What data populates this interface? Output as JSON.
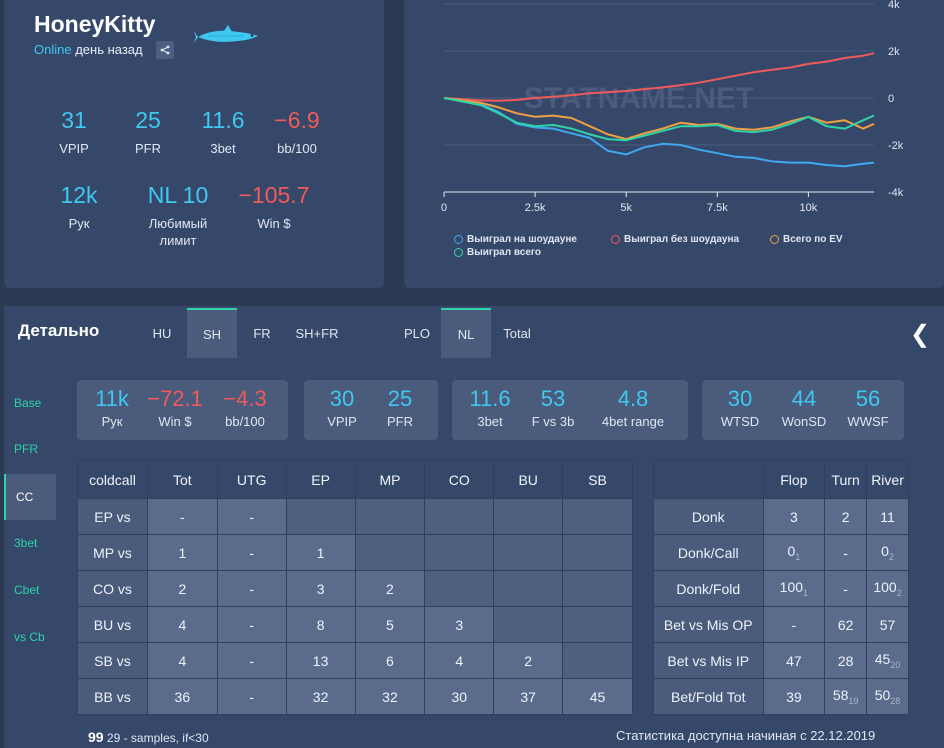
{
  "profile": {
    "name": "HoneyKitty",
    "status_online": "Online",
    "status_time": "день назад",
    "stats": [
      {
        "value": "31",
        "label": "VPIP",
        "color": "#3fc8f0"
      },
      {
        "value": "25",
        "label": "PFR",
        "color": "#3fc8f0"
      },
      {
        "value": "11.6",
        "label": "3bet",
        "color": "#3fc8f0"
      },
      {
        "value": "−6.9",
        "label": "bb/100",
        "color": "#f05a5a"
      },
      {
        "value": "12k",
        "label": "Рук",
        "color": "#3fc8f0"
      },
      {
        "value": "NL 10",
        "label": "Любимый лимит",
        "color": "#3fc8f0"
      },
      {
        "value": "−105.7",
        "label": "Win $",
        "color": "#f05a5a"
      }
    ]
  },
  "chart_data": {
    "type": "line",
    "watermark": "STATNAME.NET",
    "x_ticks": [
      "0",
      "2.5k",
      "5k",
      "7.5k",
      "10k"
    ],
    "y_ticks": [
      "4k",
      "2k",
      "0",
      "-2k",
      "-4k"
    ],
    "xlim": [
      0,
      11800
    ],
    "ylim": [
      -4000,
      4000
    ],
    "series": [
      {
        "name": "Выиграл на шоудауне",
        "color": "#3fa8f0",
        "x": [
          0,
          500,
          1000,
          1500,
          2000,
          2500,
          3000,
          3500,
          4000,
          4500,
          5000,
          5500,
          6000,
          6500,
          7000,
          7500,
          8000,
          8500,
          9000,
          9500,
          10000,
          10500,
          11000,
          11500,
          11800
        ],
        "y": [
          0,
          -100,
          -250,
          -600,
          -1100,
          -1250,
          -1300,
          -1500,
          -1700,
          -2250,
          -2400,
          -2100,
          -1950,
          -2000,
          -2200,
          -2350,
          -2500,
          -2550,
          -2700,
          -2750,
          -2750,
          -2850,
          -2900,
          -2800,
          -2750
        ]
      },
      {
        "name": "Выиграл без шоудауна",
        "color": "#f05a5a",
        "x": [
          0,
          500,
          1000,
          1500,
          2000,
          2500,
          3000,
          3500,
          4000,
          4500,
          5000,
          5500,
          6000,
          6500,
          7000,
          7500,
          8000,
          8500,
          9000,
          9500,
          10000,
          10500,
          11000,
          11500,
          11800
        ],
        "y": [
          0,
          -50,
          -100,
          -120,
          -80,
          0,
          50,
          120,
          200,
          250,
          300,
          380,
          450,
          550,
          650,
          800,
          950,
          1100,
          1200,
          1300,
          1450,
          1550,
          1700,
          1800,
          1900
        ]
      },
      {
        "name": "Всего по EV",
        "color": "#f0a040",
        "x": [
          0,
          500,
          1000,
          1500,
          2000,
          2500,
          3000,
          3500,
          4000,
          4500,
          5000,
          5500,
          6000,
          6500,
          7000,
          7500,
          8000,
          8500,
          9000,
          9500,
          10000,
          10500,
          11000,
          11500,
          11800
        ],
        "y": [
          0,
          -100,
          -200,
          -400,
          -650,
          -800,
          -750,
          -850,
          -1200,
          -1550,
          -1750,
          -1500,
          -1300,
          -1050,
          -1150,
          -1100,
          -1300,
          -1350,
          -1250,
          -1000,
          -800,
          -1050,
          -950,
          -1300,
          -1100
        ]
      },
      {
        "name": "Выиграл всего",
        "color": "#2ed3a8",
        "x": [
          0,
          500,
          1000,
          1500,
          2000,
          2500,
          3000,
          3500,
          4000,
          4500,
          5000,
          5500,
          6000,
          6500,
          7000,
          7500,
          8000,
          8500,
          9000,
          9500,
          10000,
          10500,
          11000,
          11500,
          11800
        ],
        "y": [
          0,
          -150,
          -300,
          -650,
          -1050,
          -1200,
          -1150,
          -1300,
          -1550,
          -1750,
          -1800,
          -1600,
          -1400,
          -1200,
          -1200,
          -1150,
          -1400,
          -1450,
          -1350,
          -1100,
          -800,
          -1200,
          -1300,
          -950,
          -750
        ]
      }
    ]
  },
  "detail": {
    "title": "Детально",
    "tabs": [
      "HU",
      "SH",
      "FR",
      "SH+FR",
      "PLO",
      "NL",
      "Total"
    ],
    "side_nav": [
      "Base",
      "PFR",
      "CC",
      "3bet",
      "Cbet",
      "vs Cb"
    ],
    "stat_groups": [
      [
        {
          "value": "11k",
          "label": "Рук",
          "color": "#3fc8f0"
        },
        {
          "value": "−72.1",
          "label": "Win $",
          "color": "#f05a5a"
        },
        {
          "value": "−4.3",
          "label": "bb/100",
          "color": "#f05a5a"
        }
      ],
      [
        {
          "value": "30",
          "label": "VPIP",
          "color": "#3fc8f0"
        },
        {
          "value": "25",
          "label": "PFR",
          "color": "#3fc8f0"
        }
      ],
      [
        {
          "value": "11.6",
          "label": "3bet",
          "color": "#3fc8f0"
        },
        {
          "value": "53",
          "label": "F vs 3b",
          "color": "#3fc8f0"
        },
        {
          "value": "4.8",
          "label": "4bet range",
          "color": "#3fc8f0"
        }
      ],
      [
        {
          "value": "30",
          "label": "WTSD",
          "color": "#3fc8f0"
        },
        {
          "value": "44",
          "label": "WonSD",
          "color": "#3fc8f0"
        },
        {
          "value": "56",
          "label": "WWSF",
          "color": "#3fc8f0"
        }
      ]
    ],
    "coldcall_table": {
      "headers": [
        "coldcall",
        "Tot",
        "UTG",
        "EP",
        "MP",
        "CO",
        "BU",
        "SB"
      ],
      "rows": [
        [
          "EP vs",
          "-",
          "-",
          "",
          "",
          "",
          "",
          ""
        ],
        [
          "MP vs",
          "1",
          "-",
          "1",
          "",
          "",
          "",
          ""
        ],
        [
          "CO vs",
          "2",
          "-",
          "3",
          "2",
          "",
          "",
          ""
        ],
        [
          "BU vs",
          "4",
          "-",
          "8",
          "5",
          "3",
          "",
          ""
        ],
        [
          "SB vs",
          "4",
          "-",
          "13",
          "6",
          "4",
          "2",
          ""
        ],
        [
          "BB vs",
          "36",
          "-",
          "32",
          "32",
          "30",
          "37",
          "45"
        ]
      ]
    },
    "postflop_table": {
      "headers": [
        "",
        "Flop",
        "Turn",
        "River"
      ],
      "rows": [
        [
          {
            "v": "Donk"
          },
          {
            "v": "3"
          },
          {
            "v": "2"
          },
          {
            "v": "11"
          }
        ],
        [
          {
            "v": "Donk/Call"
          },
          {
            "v": "0",
            "s": "1"
          },
          {
            "v": "-"
          },
          {
            "v": "0",
            "s": "2"
          }
        ],
        [
          {
            "v": "Donk/Fold"
          },
          {
            "v": "100",
            "s": "1"
          },
          {
            "v": "-"
          },
          {
            "v": "100",
            "s": "2"
          }
        ],
        [
          {
            "v": "Bet vs Mis OP"
          },
          {
            "v": "-"
          },
          {
            "v": "62"
          },
          {
            "v": "57"
          }
        ],
        [
          {
            "v": "Bet vs Mis IP"
          },
          {
            "v": "47"
          },
          {
            "v": "28"
          },
          {
            "v": "45",
            "s": "20"
          }
        ],
        [
          {
            "v": "Bet/Fold Tot"
          },
          {
            "v": "39"
          },
          {
            "v": "58",
            "s": "19"
          },
          {
            "v": "50",
            "s": "28"
          }
        ]
      ]
    },
    "samples_value": "99",
    "samples_note": "29 - samples, if<30",
    "date_note": "Статистика доступна начиная с 22.12.2019"
  }
}
